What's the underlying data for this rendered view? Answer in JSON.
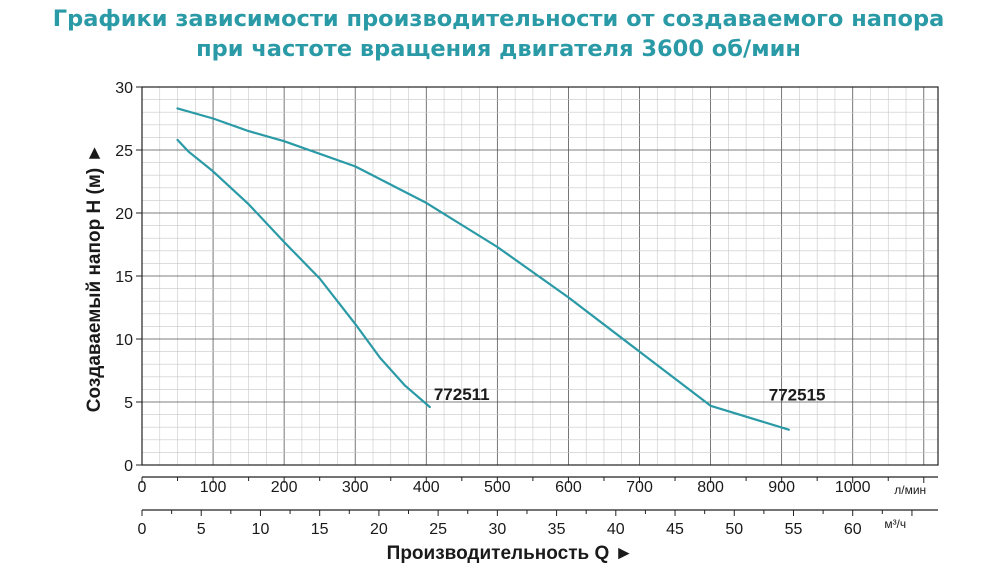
{
  "title": {
    "line1": "Графики зависимости производительности от создаваемого напора",
    "line2": "при частоте вращения двигателя 3600 об/мин"
  },
  "chart_data": {
    "type": "line",
    "ylabel": "Создаваемый напор H (м) ►",
    "xlabel": "Производительность Q ►",
    "x_units_lmin": "л/мин",
    "x_units_m3h": "м³/ч",
    "xlim": [
      0,
      1120
    ],
    "ylim": [
      0,
      30
    ],
    "y_ticks": [
      0,
      5,
      10,
      15,
      20,
      25,
      30
    ],
    "x_ticks_lmin": [
      0,
      100,
      200,
      300,
      400,
      500,
      600,
      700,
      800,
      900,
      1000
    ],
    "x_ticks_m3h": [
      0,
      5,
      10,
      15,
      20,
      25,
      30,
      35,
      40,
      45,
      50,
      55,
      60
    ],
    "grid": true,
    "series_color": "#2a9aa6",
    "series": [
      {
        "name": "772511",
        "x": [
          50,
          65,
          100,
          150,
          200,
          250,
          300,
          335,
          370,
          405
        ],
        "y": [
          25.8,
          24.9,
          23.3,
          20.7,
          17.7,
          14.8,
          11.2,
          8.5,
          6.3,
          4.6
        ]
      },
      {
        "name": "772515",
        "x": [
          50,
          100,
          150,
          200,
          300,
          400,
          500,
          600,
          700,
          800,
          910
        ],
        "y": [
          28.3,
          27.5,
          26.5,
          25.7,
          23.7,
          20.8,
          17.3,
          13.3,
          9.0,
          4.7,
          2.8
        ]
      }
    ]
  }
}
